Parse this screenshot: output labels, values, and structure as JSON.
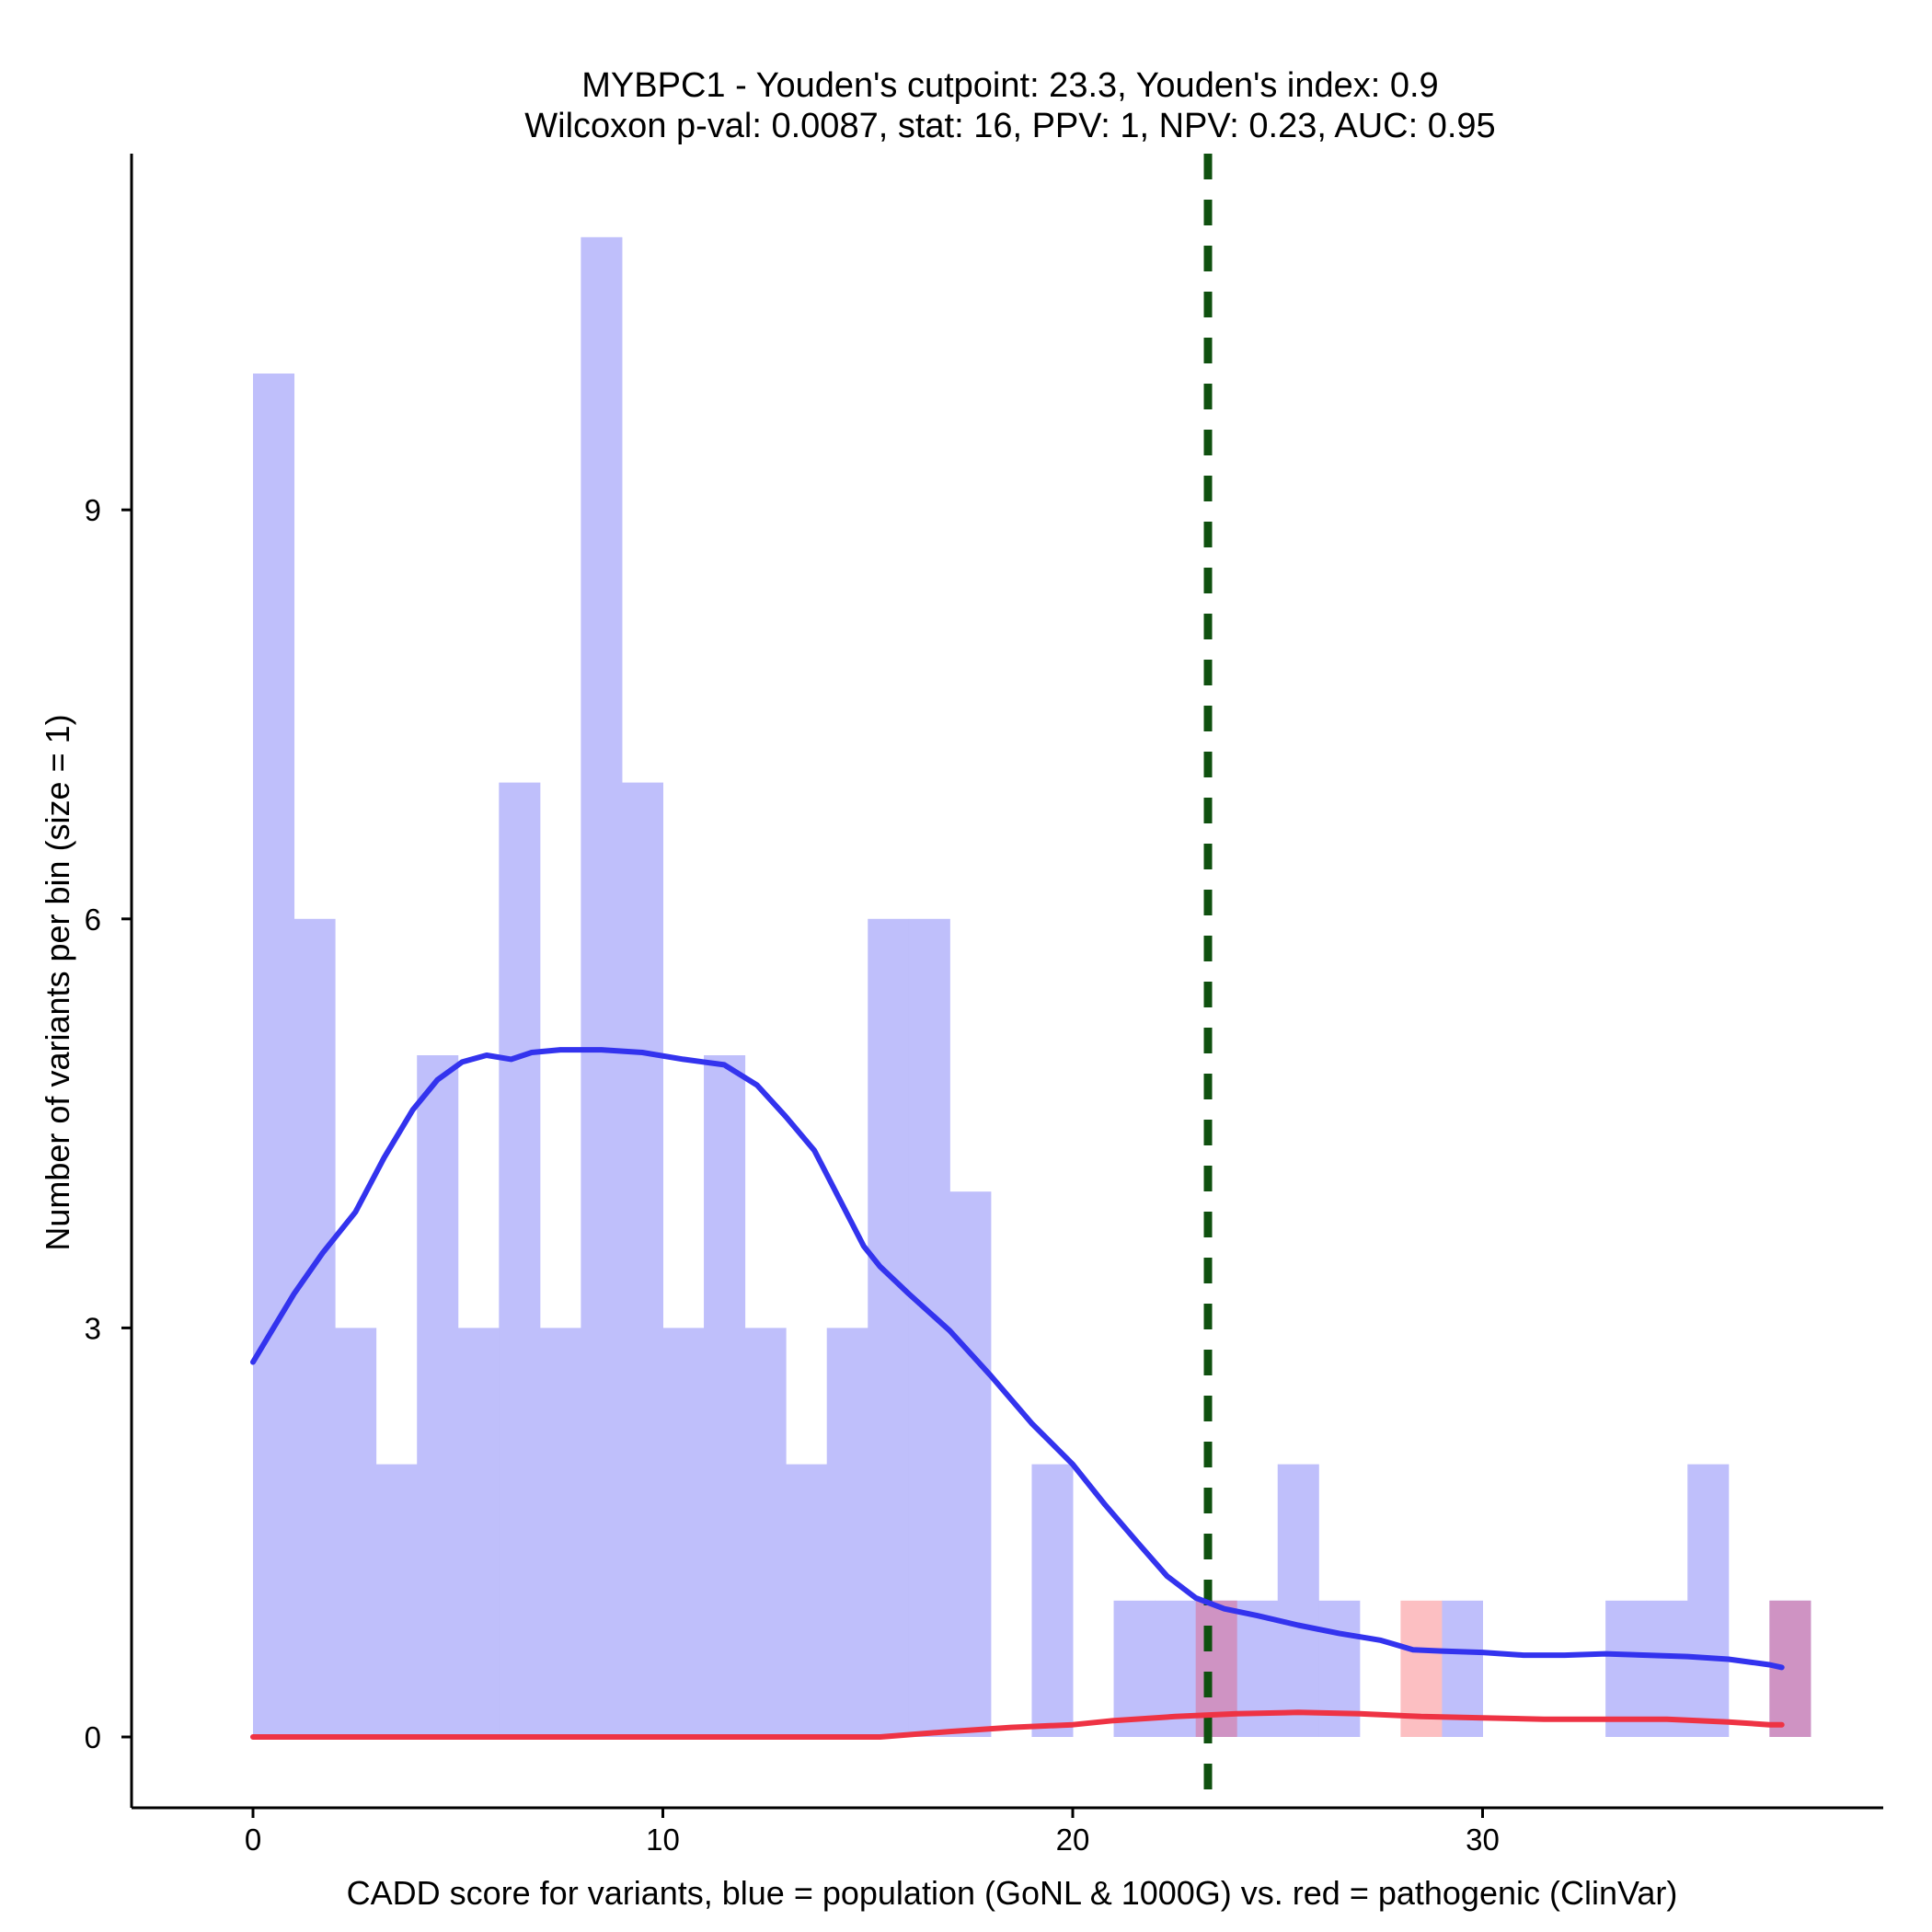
{
  "chart_data": {
    "type": "bar",
    "title": "MYBPC1 - Youden's cutpoint: 23.3, Youden's index: 0.9",
    "subtitle": "Wilcoxon p-val: 0.0087, stat: 16, PPV: 1, NPV: 0.23, AUC: 0.95",
    "xlabel": "CADD score for variants, blue = population (GoNL & 1000G) vs. red = pathogenic (ClinVar)",
    "ylabel": "Number of variants per bin (size = 1)",
    "xlim": [
      -3,
      40
    ],
    "ylim": [
      -0.55,
      11.6
    ],
    "xticks": [
      0,
      10,
      20,
      30
    ],
    "yticks": [
      0,
      3,
      6,
      9
    ],
    "bin_size": 1,
    "cutpoint": 23.3,
    "colors": {
      "population_bar": "#bfbffb",
      "pathogenic_bar": "#fcbfc2",
      "overlap_bar": "#cf93c3",
      "population_line": "#3333ee",
      "pathogenic_line": "#ee3344",
      "cutpoint_line": "#0f500f"
    },
    "series": [
      {
        "name": "population",
        "bins": [
          {
            "x": 0,
            "count": 10
          },
          {
            "x": 1,
            "count": 6
          },
          {
            "x": 2,
            "count": 3
          },
          {
            "x": 3,
            "count": 2
          },
          {
            "x": 4,
            "count": 5
          },
          {
            "x": 5,
            "count": 3
          },
          {
            "x": 6,
            "count": 7
          },
          {
            "x": 7,
            "count": 3
          },
          {
            "x": 8,
            "count": 11
          },
          {
            "x": 9,
            "count": 7
          },
          {
            "x": 10,
            "count": 3
          },
          {
            "x": 11,
            "count": 5
          },
          {
            "x": 12,
            "count": 3
          },
          {
            "x": 13,
            "count": 2
          },
          {
            "x": 14,
            "count": 3
          },
          {
            "x": 15,
            "count": 6
          },
          {
            "x": 16,
            "count": 6
          },
          {
            "x": 17,
            "count": 4
          },
          {
            "x": 19,
            "count": 2
          },
          {
            "x": 21,
            "count": 1
          },
          {
            "x": 22,
            "count": 1
          },
          {
            "x": 23,
            "count": 1
          },
          {
            "x": 24,
            "count": 1
          },
          {
            "x": 25,
            "count": 2
          },
          {
            "x": 26,
            "count": 1
          },
          {
            "x": 29,
            "count": 1
          },
          {
            "x": 33,
            "count": 1
          },
          {
            "x": 34,
            "count": 1
          },
          {
            "x": 35,
            "count": 2
          },
          {
            "x": 37,
            "count": 1
          }
        ],
        "density": [
          [
            0,
            2.75
          ],
          [
            0.4,
            2.95
          ],
          [
            1.0,
            3.25
          ],
          [
            1.7,
            3.55
          ],
          [
            2.5,
            3.85
          ],
          [
            3.2,
            4.25
          ],
          [
            3.9,
            4.6
          ],
          [
            4.5,
            4.82
          ],
          [
            5.1,
            4.95
          ],
          [
            5.7,
            5.0
          ],
          [
            6.3,
            4.97
          ],
          [
            6.8,
            5.02
          ],
          [
            7.5,
            5.04
          ],
          [
            8.5,
            5.04
          ],
          [
            9.5,
            5.02
          ],
          [
            10.5,
            4.97
          ],
          [
            11.5,
            4.93
          ],
          [
            12.3,
            4.78
          ],
          [
            13.0,
            4.55
          ],
          [
            13.7,
            4.3
          ],
          [
            14.3,
            3.95
          ],
          [
            14.9,
            3.6
          ],
          [
            15.3,
            3.45
          ],
          [
            16.0,
            3.25
          ],
          [
            17.0,
            2.98
          ],
          [
            18.0,
            2.65
          ],
          [
            19.0,
            2.3
          ],
          [
            20.0,
            2.0
          ],
          [
            20.8,
            1.7
          ],
          [
            21.6,
            1.42
          ],
          [
            22.3,
            1.18
          ],
          [
            23.0,
            1.02
          ],
          [
            23.7,
            0.94
          ],
          [
            24.5,
            0.89
          ],
          [
            25.5,
            0.82
          ],
          [
            26.5,
            0.76
          ],
          [
            27.5,
            0.71
          ],
          [
            28.3,
            0.64
          ],
          [
            29.0,
            0.63
          ],
          [
            30.0,
            0.62
          ],
          [
            31.0,
            0.6
          ],
          [
            32.0,
            0.6
          ],
          [
            33.0,
            0.61
          ],
          [
            34.0,
            0.6
          ],
          [
            35.0,
            0.59
          ],
          [
            36.0,
            0.57
          ],
          [
            37.0,
            0.53
          ],
          [
            37.3,
            0.51
          ]
        ]
      },
      {
        "name": "pathogenic",
        "bins": [
          {
            "x": 23,
            "count": 1
          },
          {
            "x": 28,
            "count": 1
          },
          {
            "x": 37,
            "count": 1
          }
        ],
        "density": [
          [
            0,
            0.0
          ],
          [
            15.3,
            0.0
          ],
          [
            17.0,
            0.04
          ],
          [
            18.5,
            0.07
          ],
          [
            20.0,
            0.09
          ],
          [
            21.0,
            0.12
          ],
          [
            22.5,
            0.15
          ],
          [
            24.0,
            0.17
          ],
          [
            25.5,
            0.18
          ],
          [
            27.0,
            0.17
          ],
          [
            28.5,
            0.15
          ],
          [
            30.0,
            0.14
          ],
          [
            31.5,
            0.13
          ],
          [
            33.0,
            0.13
          ],
          [
            34.5,
            0.13
          ],
          [
            36.0,
            0.11
          ],
          [
            37.0,
            0.09
          ],
          [
            37.3,
            0.09
          ]
        ]
      }
    ]
  }
}
